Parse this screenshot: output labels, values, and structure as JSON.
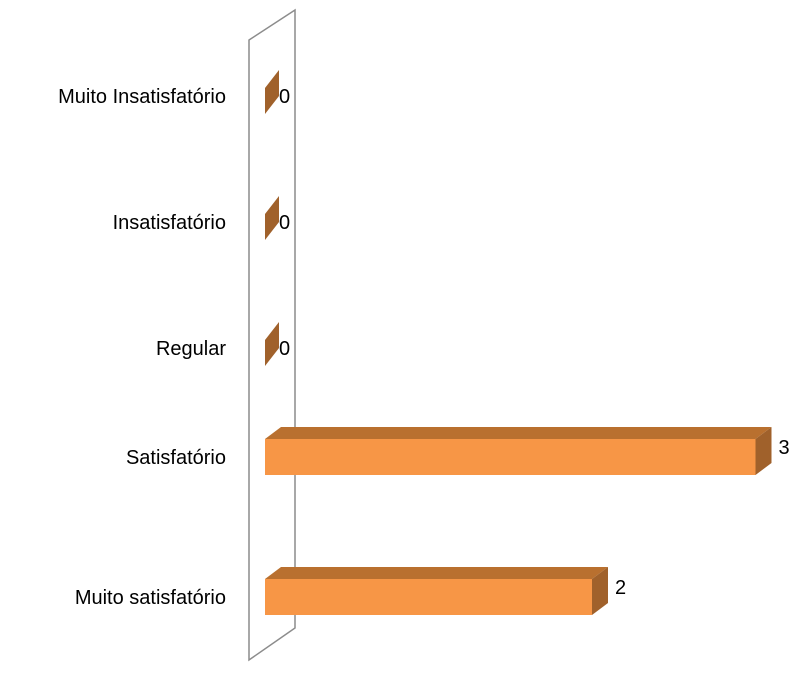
{
  "chart_data": {
    "type": "bar",
    "orientation": "horizontal",
    "style": "3d",
    "categories": [
      "Muito Insatisfatório",
      "Insatisfatório",
      "Regular",
      "Satisfatório",
      "Muito satisfatório"
    ],
    "values": [
      0,
      0,
      0,
      3,
      2
    ],
    "value_labels": [
      "0",
      "0",
      "0",
      "3",
      "2"
    ],
    "xlim": [
      0,
      3
    ],
    "grid": false,
    "legend": "none",
    "title": "",
    "xlabel": "",
    "ylabel": ""
  },
  "colors": {
    "bar_front": "#F79646",
    "bar_top": "#B9702F",
    "bar_side": "#A0612B",
    "wall_stroke": "#8C8C8C",
    "text": "#000000"
  }
}
